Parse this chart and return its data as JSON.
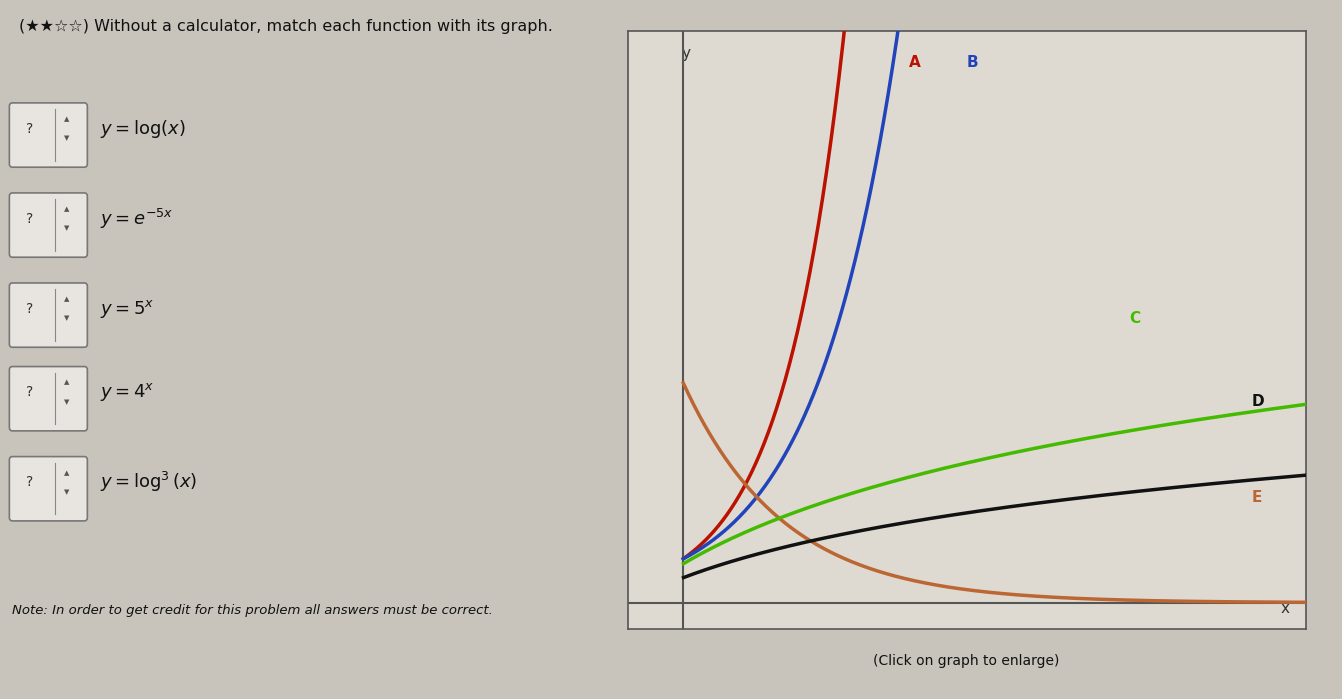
{
  "title": "(★★☆☆) Without a calculator, match each function with its graph.",
  "functions_display": [
    "$y = \\log(x)$",
    "$y = e^{-5x}$",
    "$y = 5^{x}$",
    "$y = 4^{x}$",
    "$y = \\log^3(x)$"
  ],
  "graph_xlabel": "x",
  "graph_ylabel": "y",
  "caption": "(Click on graph to enlarge)",
  "note": "Note: In order to get credit for this problem all answers must be correct.",
  "curve_A": {
    "color": "#bb1100",
    "label": "A"
  },
  "curve_B": {
    "color": "#2244bb",
    "label": "B"
  },
  "curve_C": {
    "color": "#44bb00",
    "label": "C"
  },
  "curve_D": {
    "color": "#111111",
    "label": "D"
  },
  "curve_E": {
    "color": "#bb6633",
    "label": "E"
  },
  "bg_color": "#c8c4bc",
  "plot_bg": "#dedad2",
  "text_color": "#111111",
  "xlim": [
    0.5,
    3.2
  ],
  "ylim": [
    -0.3,
    6.5
  ],
  "yaxis_x": 0.72,
  "xaxis_y": 0.0
}
